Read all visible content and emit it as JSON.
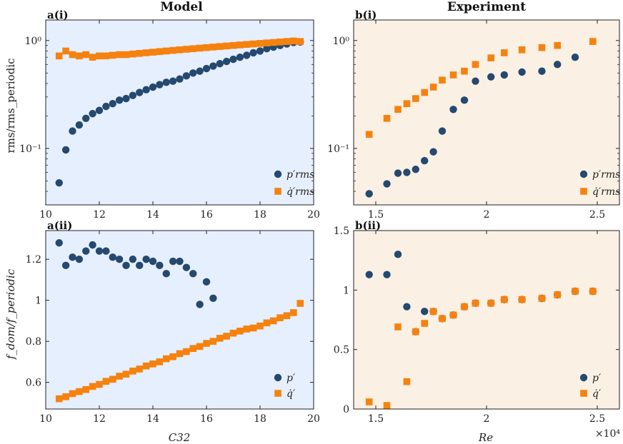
{
  "figure": {
    "left_title": "Model",
    "right_title": "Experiment",
    "exponent_label": "×10⁴"
  },
  "colors": {
    "p": "#25496f",
    "q": "#f5820f",
    "model_bg": "#e6effd",
    "exp_bg": "#faf0e4"
  },
  "chart_data": [
    {
      "type": "scatter",
      "label": "a(i)",
      "yscale": "log",
      "xlim": [
        10,
        20
      ],
      "ylim": [
        0.03,
        1.55
      ],
      "xticks": [
        "10",
        "12",
        "14",
        "16",
        "18",
        "20"
      ],
      "yticks": [
        {
          "v": 0.1,
          "label": "10⁻¹"
        },
        {
          "v": 1,
          "label": "10⁰"
        }
      ],
      "ylabel": "rms/rms_periodic",
      "xlabel": "",
      "legend": [
        "p′rms",
        "q̇′rms"
      ],
      "series": [
        {
          "name": "p′rms",
          "marker": "circle",
          "x": [
            10.5,
            10.75,
            11,
            11.25,
            11.5,
            11.75,
            12,
            12.25,
            12.5,
            12.75,
            13,
            13.25,
            13.5,
            13.75,
            14,
            14.25,
            14.5,
            14.75,
            15,
            15.25,
            15.5,
            15.75,
            16,
            16.25,
            16.5,
            16.75,
            17,
            17.25,
            17.5,
            17.75,
            18,
            18.25,
            18.5,
            18.75,
            19,
            19.25,
            19.5
          ],
          "y": [
            0.048,
            0.097,
            0.145,
            0.165,
            0.19,
            0.21,
            0.225,
            0.245,
            0.26,
            0.28,
            0.29,
            0.31,
            0.33,
            0.35,
            0.37,
            0.39,
            0.41,
            0.42,
            0.44,
            0.47,
            0.5,
            0.52,
            0.55,
            0.58,
            0.61,
            0.64,
            0.67,
            0.7,
            0.73,
            0.77,
            0.8,
            0.84,
            0.87,
            0.9,
            0.93,
            0.96,
            0.97
          ]
        },
        {
          "name": "q̇′rms",
          "marker": "square",
          "x": [
            10.5,
            10.75,
            11,
            11.25,
            11.5,
            11.75,
            12,
            12.25,
            12.5,
            12.75,
            13,
            13.25,
            13.5,
            13.75,
            14,
            14.25,
            14.5,
            14.75,
            15,
            15.25,
            15.5,
            15.75,
            16,
            16.25,
            16.5,
            16.75,
            17,
            17.25,
            17.5,
            17.75,
            18,
            18.25,
            18.5,
            18.75,
            19,
            19.25,
            19.5
          ],
          "y": [
            0.72,
            0.8,
            0.74,
            0.72,
            0.74,
            0.7,
            0.72,
            0.72,
            0.73,
            0.74,
            0.74,
            0.75,
            0.76,
            0.77,
            0.78,
            0.79,
            0.8,
            0.81,
            0.82,
            0.83,
            0.84,
            0.85,
            0.86,
            0.87,
            0.88,
            0.89,
            0.9,
            0.91,
            0.92,
            0.93,
            0.94,
            0.95,
            0.96,
            0.97,
            0.98,
            0.99,
            0.98
          ]
        }
      ]
    },
    {
      "type": "scatter",
      "label": "b(i)",
      "yscale": "log",
      "xlim": [
        1.4,
        2.6
      ],
      "ylim": [
        0.03,
        1.55
      ],
      "xticks": [
        "1.5",
        "2",
        "2.5"
      ],
      "yticks": [
        {
          "v": 0.1,
          "label": "10⁻¹"
        },
        {
          "v": 1,
          "label": "10⁰"
        }
      ],
      "legend": [
        "p′rms",
        "q̇′rms"
      ],
      "series": [
        {
          "name": "p′rms",
          "marker": "circle",
          "x": [
            1.47,
            1.55,
            1.6,
            1.64,
            1.68,
            1.72,
            1.76,
            1.8,
            1.85,
            1.9,
            1.95,
            2.02,
            2.08,
            2.16,
            2.25,
            2.32,
            2.4
          ],
          "y": [
            0.038,
            0.047,
            0.059,
            0.06,
            0.064,
            0.077,
            0.093,
            0.145,
            0.23,
            0.28,
            0.42,
            0.46,
            0.48,
            0.51,
            0.52,
            0.6,
            0.7
          ]
        },
        {
          "name": "q̇′rms",
          "marker": "square",
          "x": [
            1.47,
            1.55,
            1.6,
            1.64,
            1.68,
            1.72,
            1.76,
            1.8,
            1.85,
            1.9,
            1.95,
            2.02,
            2.08,
            2.16,
            2.25,
            2.32,
            2.48
          ],
          "y": [
            0.135,
            0.19,
            0.23,
            0.26,
            0.29,
            0.33,
            0.37,
            0.43,
            0.48,
            0.52,
            0.6,
            0.69,
            0.77,
            0.82,
            0.86,
            0.9,
            0.98
          ]
        }
      ]
    },
    {
      "type": "scatter",
      "label": "a(ii)",
      "yscale": "linear",
      "xlim": [
        10,
        20
      ],
      "ylim": [
        0.47,
        1.34
      ],
      "xticks": [
        "10",
        "12",
        "14",
        "16",
        "18",
        "20"
      ],
      "yticks": [
        {
          "v": 0.6,
          "label": "0.6"
        },
        {
          "v": 0.8,
          "label": "0.8"
        },
        {
          "v": 1.0,
          "label": "1"
        },
        {
          "v": 1.2,
          "label": "1.2"
        }
      ],
      "ylabel": "f_dom/f_periodic",
      "xlabel": "C32",
      "legend": [
        "p′",
        "q̇′"
      ],
      "series": [
        {
          "name": "p′",
          "marker": "circle",
          "x": [
            10.5,
            10.75,
            11,
            11.25,
            11.5,
            11.75,
            12,
            12.25,
            12.5,
            12.75,
            13,
            13.25,
            13.5,
            13.75,
            14,
            14.25,
            14.5,
            14.75,
            15,
            15.25,
            15.5,
            15.75,
            16,
            16.25
          ],
          "y": [
            1.28,
            1.17,
            1.21,
            1.2,
            1.24,
            1.27,
            1.24,
            1.24,
            1.21,
            1.2,
            1.17,
            1.2,
            1.17,
            1.2,
            1.19,
            1.17,
            1.13,
            1.19,
            1.19,
            1.16,
            1.13,
            0.98,
            1.09,
            1.01
          ]
        },
        {
          "name": "q̇′",
          "marker": "square",
          "x": [
            10.5,
            10.75,
            11,
            11.25,
            11.5,
            11.75,
            12,
            12.25,
            12.5,
            12.75,
            13,
            13.25,
            13.5,
            13.75,
            14,
            14.25,
            14.5,
            14.75,
            15,
            15.25,
            15.5,
            15.75,
            16,
            16.25,
            16.5,
            16.75,
            17,
            17.25,
            17.5,
            17.75,
            18,
            18.25,
            18.5,
            18.75,
            19,
            19.25,
            19.5
          ],
          "y": [
            0.52,
            0.53,
            0.545,
            0.555,
            0.565,
            0.58,
            0.59,
            0.605,
            0.615,
            0.63,
            0.64,
            0.655,
            0.665,
            0.68,
            0.69,
            0.7,
            0.715,
            0.725,
            0.74,
            0.75,
            0.765,
            0.775,
            0.79,
            0.8,
            0.815,
            0.825,
            0.84,
            0.85,
            0.86,
            0.865,
            0.875,
            0.89,
            0.9,
            0.915,
            0.925,
            0.94,
            0.985
          ]
        }
      ]
    },
    {
      "type": "scatter",
      "label": "b(ii)",
      "yscale": "linear",
      "xlim": [
        1.4,
        2.6
      ],
      "ylim": [
        0,
        1.5
      ],
      "xticks": [
        "1.5",
        "2",
        "2.5"
      ],
      "yticks": [
        {
          "v": 0,
          "label": "0"
        },
        {
          "v": 0.5,
          "label": "0.5"
        },
        {
          "v": 1.0,
          "label": "1"
        },
        {
          "v": 1.5,
          "label": "1.5"
        }
      ],
      "xlabel": "Re",
      "legend": [
        "p′",
        "q̇′"
      ],
      "series": [
        {
          "name": "p′",
          "marker": "circle",
          "x": [
            1.47,
            1.55,
            1.6,
            1.64,
            1.68,
            1.72,
            1.76,
            1.8,
            1.85,
            1.9,
            1.95,
            2.02,
            2.08,
            2.16,
            2.25,
            2.32,
            2.4,
            2.48
          ],
          "y": [
            1.13,
            1.13,
            1.3,
            0.86,
            0.65,
            0.82,
            0.82,
            0.76,
            0.79,
            0.86,
            0.89,
            0.89,
            0.92,
            0.92,
            0.93,
            0.96,
            0.99,
            0.99
          ]
        },
        {
          "name": "q̇′",
          "marker": "square",
          "x": [
            1.47,
            1.55,
            1.6,
            1.64,
            1.68,
            1.72,
            1.76,
            1.8,
            1.85,
            1.9,
            1.95,
            2.02,
            2.08,
            2.16,
            2.25,
            2.32,
            2.4,
            2.48
          ],
          "y": [
            0.06,
            0.03,
            0.69,
            0.23,
            0.65,
            0.72,
            0.82,
            0.76,
            0.79,
            0.86,
            0.89,
            0.89,
            0.92,
            0.92,
            0.93,
            0.96,
            0.99,
            0.99
          ]
        }
      ]
    }
  ]
}
